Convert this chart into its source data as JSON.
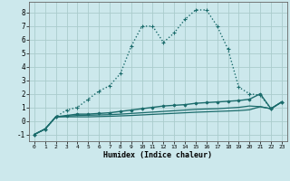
{
  "xlabel": "Humidex (Indice chaleur)",
  "bg_color": "#cce8ec",
  "grid_color": "#aacccc",
  "line_color": "#1a6b6b",
  "xlim": [
    -0.5,
    23.5
  ],
  "ylim": [
    -1.5,
    8.8
  ],
  "xticks": [
    0,
    1,
    2,
    3,
    4,
    5,
    6,
    7,
    8,
    9,
    10,
    11,
    12,
    13,
    14,
    15,
    16,
    17,
    18,
    19,
    20,
    21,
    22,
    23
  ],
  "yticks": [
    -1,
    0,
    1,
    2,
    3,
    4,
    5,
    6,
    7,
    8
  ],
  "series": [
    {
      "x": [
        0,
        1,
        2,
        3,
        4,
        5,
        6,
        7,
        8,
        9,
        10,
        11,
        12,
        13,
        14,
        15,
        16,
        17,
        18,
        19,
        20,
        21,
        22,
        23
      ],
      "y": [
        -1,
        -0.6,
        0.3,
        0.8,
        1.0,
        1.6,
        2.2,
        2.6,
        3.5,
        5.5,
        7.0,
        7.0,
        5.8,
        6.5,
        7.5,
        8.2,
        8.2,
        7.0,
        5.3,
        2.5,
        2.0,
        1.9,
        0.9,
        1.4
      ],
      "linestyle": "dotted",
      "marker": "+",
      "markersize": 3.5,
      "linewidth": 1.0
    },
    {
      "x": [
        0,
        1,
        2,
        3,
        4,
        5,
        6,
        7,
        8,
        9,
        10,
        11,
        12,
        13,
        14,
        15,
        16,
        17,
        18,
        19,
        20,
        21,
        22,
        23
      ],
      "y": [
        -1,
        -0.6,
        0.3,
        0.4,
        0.5,
        0.5,
        0.55,
        0.6,
        0.7,
        0.8,
        0.9,
        1.0,
        1.1,
        1.15,
        1.2,
        1.3,
        1.35,
        1.4,
        1.45,
        1.5,
        1.6,
        2.0,
        0.9,
        1.4
      ],
      "linestyle": "solid",
      "marker": "D",
      "markersize": 1.5,
      "linewidth": 1.0
    },
    {
      "x": [
        0,
        1,
        2,
        3,
        4,
        5,
        6,
        7,
        8,
        9,
        10,
        11,
        12,
        13,
        14,
        15,
        16,
        17,
        18,
        19,
        20,
        21,
        22,
        23
      ],
      "y": [
        -1,
        -0.6,
        0.3,
        0.35,
        0.4,
        0.42,
        0.44,
        0.46,
        0.5,
        0.55,
        0.6,
        0.65,
        0.7,
        0.75,
        0.8,
        0.85,
        0.88,
        0.9,
        0.95,
        1.0,
        1.1,
        1.05,
        0.9,
        1.4
      ],
      "linestyle": "solid",
      "marker": null,
      "markersize": 0,
      "linewidth": 0.9
    },
    {
      "x": [
        0,
        1,
        2,
        3,
        4,
        5,
        6,
        7,
        8,
        9,
        10,
        11,
        12,
        13,
        14,
        15,
        16,
        17,
        18,
        19,
        20,
        21,
        22,
        23
      ],
      "y": [
        -1,
        -0.6,
        0.3,
        0.3,
        0.3,
        0.3,
        0.32,
        0.34,
        0.37,
        0.4,
        0.44,
        0.48,
        0.52,
        0.56,
        0.6,
        0.64,
        0.67,
        0.7,
        0.73,
        0.76,
        0.82,
        1.05,
        0.9,
        1.4
      ],
      "linestyle": "solid",
      "marker": null,
      "markersize": 0,
      "linewidth": 0.9
    }
  ]
}
